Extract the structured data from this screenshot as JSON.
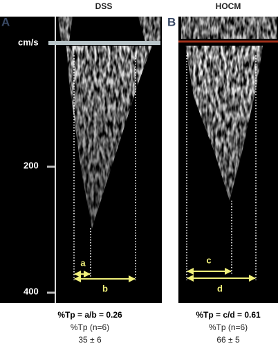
{
  "panels": [
    {
      "label": "A",
      "title": "DSS",
      "axis": {
        "unit": "cm/s",
        "ticks": [
          "200",
          "400"
        ]
      },
      "markers": [
        "a",
        "b"
      ],
      "result": {
        "formula": "%Tp = a/b = 0.26",
        "group": "%Tp (n=6)",
        "value": "35 ± 6"
      }
    },
    {
      "label": "B",
      "title": "HOCM",
      "markers": [
        "c",
        "d"
      ],
      "result": {
        "formula": "%Tp = c/d = 0.61",
        "group": "%Tp (n=6)",
        "value": "66 ± 5"
      }
    }
  ]
}
